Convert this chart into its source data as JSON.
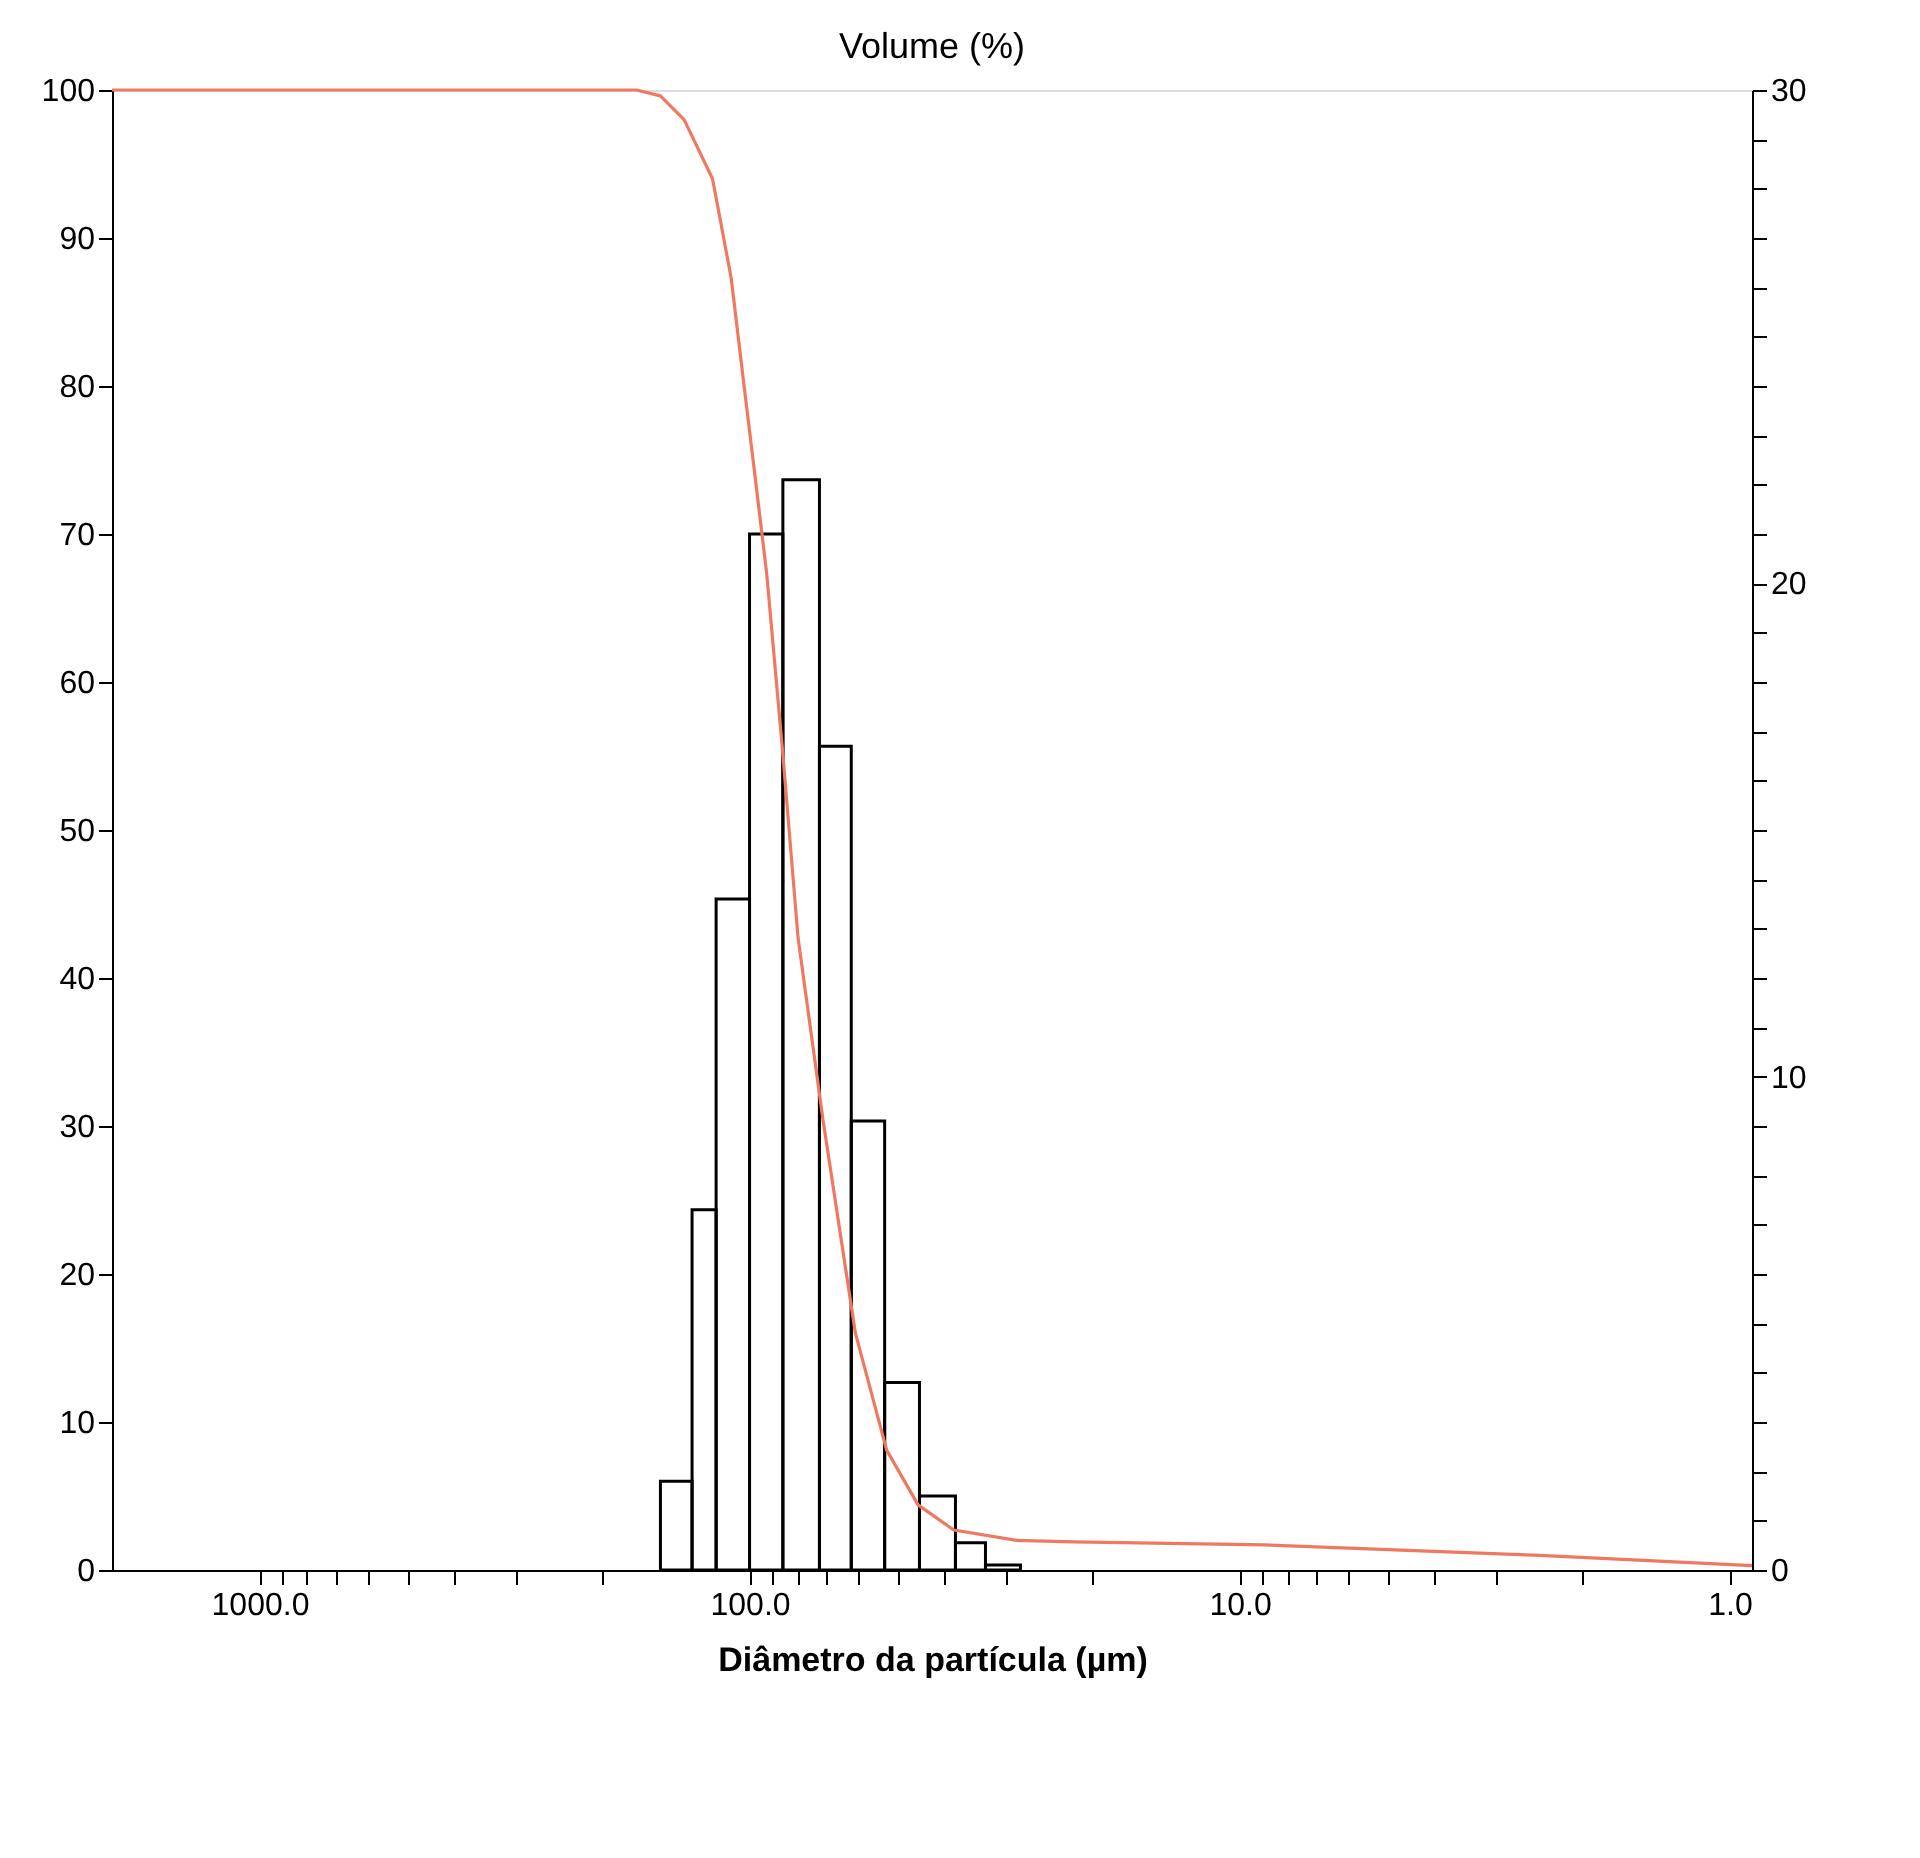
{
  "chart_data": {
    "type": "histogram",
    "title": "Volume (%)",
    "xlabel": "Diâmetro da partícula (µm)",
    "log": "x",
    "xlim": [
      2000,
      0.9
    ],
    "xticks": [
      {
        "value": 1000,
        "label": "1000.0"
      },
      {
        "value": 900,
        "label": null
      },
      {
        "value": 800,
        "label": null
      },
      {
        "value": 700,
        "label": null
      },
      {
        "value": 600,
        "label": null
      },
      {
        "value": 500,
        "label": null
      },
      {
        "value": 400,
        "label": null
      },
      {
        "value": 300,
        "label": null
      },
      {
        "value": 200,
        "label": null
      },
      {
        "value": 100,
        "label": "100.0"
      },
      {
        "value": 90,
        "label": null
      },
      {
        "value": 80,
        "label": null
      },
      {
        "value": 70,
        "label": null
      },
      {
        "value": 60,
        "label": null
      },
      {
        "value": 50,
        "label": null
      },
      {
        "value": 40,
        "label": null
      },
      {
        "value": 30,
        "label": null
      },
      {
        "value": 20,
        "label": null
      },
      {
        "value": 10,
        "label": "10.0"
      },
      {
        "value": 9,
        "label": null
      },
      {
        "value": 8,
        "label": null
      },
      {
        "value": 7,
        "label": null
      },
      {
        "value": 6,
        "label": null
      },
      {
        "value": 5,
        "label": null
      },
      {
        "value": 4,
        "label": null
      },
      {
        "value": 3,
        "label": null
      },
      {
        "value": 2,
        "label": null
      },
      {
        "value": 1,
        "label": "1.0"
      }
    ],
    "ylim": [
      0,
      100
    ],
    "yticks": [
      0,
      10,
      20,
      30,
      40,
      50,
      60,
      70,
      80,
      90,
      100
    ],
    "y2lim": [
      0,
      30
    ],
    "y2ticks": [
      0,
      {
        "value": 1,
        "label": null
      },
      {
        "value": 2,
        "label": null
      },
      {
        "value": 3,
        "label": null
      },
      {
        "value": 4,
        "label": null
      },
      {
        "value": 5,
        "label": null
      },
      {
        "value": 6,
        "label": null
      },
      {
        "value": 7,
        "label": null
      },
      {
        "value": 8,
        "label": null
      },
      {
        "value": 9,
        "label": null
      },
      10,
      {
        "value": 11,
        "label": null
      },
      {
        "value": 12,
        "label": null
      },
      {
        "value": 13,
        "label": null
      },
      {
        "value": 14,
        "label": null
      },
      {
        "value": 15,
        "label": null
      },
      {
        "value": 16,
        "label": null
      },
      {
        "value": 17,
        "label": null
      },
      {
        "value": 18,
        "label": null
      },
      {
        "value": 19,
        "label": null
      },
      20,
      {
        "value": 21,
        "label": null
      },
      {
        "value": 22,
        "label": null
      },
      {
        "value": 23,
        "label": null
      },
      {
        "value": 24,
        "label": null
      },
      {
        "value": 25,
        "label": null
      },
      {
        "value": 26,
        "label": null
      },
      {
        "value": 27,
        "label": null
      },
      {
        "value": 28,
        "label": null
      },
      {
        "value": 29,
        "label": null
      },
      30
    ],
    "grid": false,
    "line_style": "solid",
    "series": [
      {
        "axis": "y2",
        "color": "#000000",
        "bins": [
          28,
          33,
          38,
          45,
          53,
          62,
          72,
          85.5,
          100,
          117,
          131,
          152
        ],
        "values": [
          0.1,
          0.55,
          1.5,
          3.8,
          9.1,
          16.7,
          22.1,
          21.0,
          13.6,
          7.3,
          1.8
        ]
      },
      {
        "type": "line",
        "color": "#f07860",
        "x": [
          0.9,
          2.5,
          8.9,
          21.8,
          28.5,
          38.3,
          45.3,
          52.5,
          60.8,
          70.8,
          79.6,
          85.7,
          92.3,
          98.6,
          102,
          109,
          119,
          136,
          152,
          170,
          2000
        ],
        "values": [
          0.3,
          1.0,
          1.7,
          1.9,
          2.0,
          2.7,
          4.4,
          8.1,
          16,
          30.4,
          42.7,
          55.5,
          67.4,
          75.3,
          79.3,
          87.3,
          94,
          98,
          99.6,
          100,
          100
        ]
      }
    ]
  }
}
